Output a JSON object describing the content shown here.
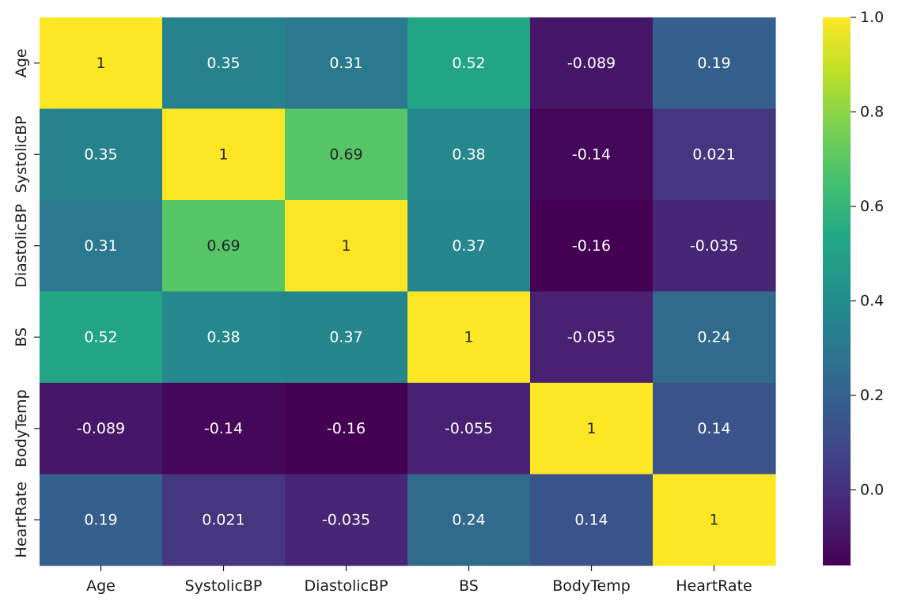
{
  "chart_data": {
    "type": "heatmap",
    "title": "",
    "xlabel": "",
    "ylabel": "",
    "x_labels": [
      "Age",
      "SystolicBP",
      "DiastolicBP",
      "BS",
      "BodyTemp",
      "HeartRate"
    ],
    "y_labels": [
      "Age",
      "SystolicBP",
      "DiastolicBP",
      "BS",
      "BodyTemp",
      "HeartRate"
    ],
    "values": [
      [
        1,
        0.35,
        0.31,
        0.52,
        -0.089,
        0.19
      ],
      [
        0.35,
        1,
        0.69,
        0.38,
        -0.14,
        0.021
      ],
      [
        0.31,
        0.69,
        1,
        0.37,
        -0.16,
        -0.035
      ],
      [
        0.52,
        0.38,
        0.37,
        1,
        -0.055,
        0.24
      ],
      [
        -0.089,
        -0.14,
        -0.16,
        -0.055,
        1,
        0.14
      ],
      [
        0.19,
        0.021,
        -0.035,
        0.24,
        0.14,
        1
      ]
    ],
    "annotations": [
      [
        "1",
        "0.35",
        "0.31",
        "0.52",
        "-0.089",
        "0.19"
      ],
      [
        "0.35",
        "1",
        "0.69",
        "0.38",
        "-0.14",
        "0.021"
      ],
      [
        "0.31",
        "0.69",
        "1",
        "0.37",
        "-0.16",
        "-0.035"
      ],
      [
        "0.52",
        "0.38",
        "0.37",
        "1",
        "-0.055",
        "0.24"
      ],
      [
        "-0.089",
        "-0.14",
        "-0.16",
        "-0.055",
        "1",
        "0.14"
      ],
      [
        "0.19",
        "0.021",
        "-0.035",
        "0.24",
        "0.14",
        "1"
      ]
    ],
    "colormap": "viridis",
    "vmin": -0.16,
    "vmax": 1,
    "colorbar_ticks": [
      0.0,
      0.2,
      0.4,
      0.6,
      0.8,
      1.0
    ],
    "colorbar_tick_labels": [
      "0.0",
      "0.2",
      "0.4",
      "0.6",
      "0.8",
      "1.0"
    ],
    "grid": false,
    "legend": "colorbar-right"
  }
}
